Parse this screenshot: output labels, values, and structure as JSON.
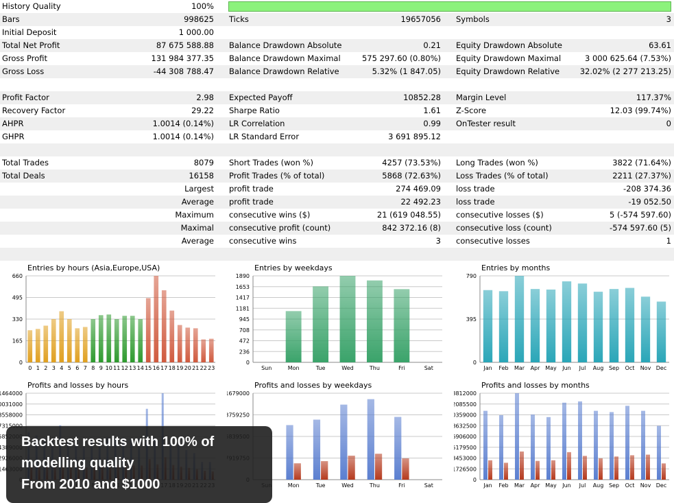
{
  "report": {
    "rows": [
      {
        "c": [
          "History Quality",
          "100%",
          "",
          "",
          "",
          ""
        ],
        "bar": true
      },
      {
        "c": [
          "Bars",
          "998625",
          "Ticks",
          "19657056",
          "Symbols",
          "3"
        ]
      },
      {
        "c": [
          "Initial Deposit",
          "1 000.00",
          "",
          "",
          "",
          ""
        ]
      },
      {
        "c": [
          "Total Net Profit",
          "87 675 588.88",
          "Balance Drawdown Absolute",
          "0.21",
          "Equity Drawdown Absolute",
          "63.61"
        ]
      },
      {
        "c": [
          "Gross Profit",
          "131 984 377.35",
          "Balance Drawdown Maximal",
          "575 297.60 (0.80%)",
          "Equity Drawdown Maximal",
          "3 000 625.64 (7.53%)"
        ]
      },
      {
        "c": [
          "Gross Loss",
          "-44 308 788.47",
          "Balance Drawdown Relative",
          "5.32% (1 847.05)",
          "Equity Drawdown Relative",
          "32.02% (2 277 213.25)"
        ]
      },
      {
        "c": [
          "",
          "",
          "",
          "",
          "",
          ""
        ]
      },
      {
        "c": [
          "Profit Factor",
          "2.98",
          "Expected Payoff",
          "10852.28",
          "Margin Level",
          "117.37%"
        ]
      },
      {
        "c": [
          "Recovery Factor",
          "29.22",
          "Sharpe Ratio",
          "1.61",
          "Z-Score",
          "12.03 (99.74%)"
        ]
      },
      {
        "c": [
          "AHPR",
          "1.0014 (0.14%)",
          "LR Correlation",
          "0.99",
          "OnTester result",
          "0"
        ]
      },
      {
        "c": [
          "GHPR",
          "1.0014 (0.14%)",
          "LR Standard Error",
          "3 691 895.12",
          "",
          ""
        ]
      },
      {
        "c": [
          "",
          "",
          "",
          "",
          "",
          ""
        ]
      },
      {
        "c": [
          "Total Trades",
          "8079",
          "Short Trades (won %)",
          "4257 (73.53%)",
          "Long Trades (won %)",
          "3822 (71.64%)"
        ]
      },
      {
        "c": [
          "Total Deals",
          "16158",
          "Profit Trades (% of total)",
          "5868 (72.63%)",
          "Loss Trades (% of total)",
          "2211 (27.37%)"
        ]
      },
      {
        "c": [
          "",
          "Largest",
          "profit trade",
          "274 469.09",
          "loss trade",
          "-208 374.36"
        ]
      },
      {
        "c": [
          "",
          "Average",
          "profit trade",
          "22 492.23",
          "loss trade",
          "-19 052.50"
        ]
      },
      {
        "c": [
          "",
          "Maximum",
          "consecutive wins ($)",
          "21 (619 048.55)",
          "consecutive losses ($)",
          "5 (-574 597.60)"
        ]
      },
      {
        "c": [
          "",
          "Maximal",
          "consecutive profit (count)",
          "842 372.16 (8)",
          "consecutive loss (count)",
          "-574 597.60 (5)"
        ]
      },
      {
        "c": [
          "",
          "Average",
          "consecutive wins",
          "3",
          "consecutive losses",
          "1"
        ]
      },
      {
        "c": [
          "",
          "",
          "",
          "",
          "",
          ""
        ]
      }
    ]
  },
  "chart_data": [
    {
      "type": "bar",
      "title": "Entries by hours (Asia,Europe,USA)",
      "categories": [
        "0",
        "1",
        "2",
        "3",
        "4",
        "5",
        "6",
        "7",
        "8",
        "9",
        "10",
        "11",
        "12",
        "13",
        "14",
        "15",
        "16",
        "17",
        "18",
        "19",
        "20",
        "21",
        "22",
        "23"
      ],
      "values": [
        245,
        255,
        280,
        330,
        390,
        330,
        260,
        270,
        330,
        360,
        365,
        330,
        355,
        355,
        330,
        490,
        660,
        550,
        395,
        285,
        265,
        260,
        175,
        180
      ],
      "colors": [
        "#e0a020",
        "#e0a020",
        "#e0a020",
        "#e0a020",
        "#e0a020",
        "#e0a020",
        "#e0a020",
        "#e0a020",
        "#2e9a2e",
        "#2e9a2e",
        "#2e9a2e",
        "#2e9a2e",
        "#2e9a2e",
        "#2e9a2e",
        "#2e9a2e",
        "#d05a3e",
        "#d05a3e",
        "#d05a3e",
        "#d05a3e",
        "#d05a3e",
        "#d05a3e",
        "#d05a3e",
        "#d05a3e",
        "#d05a3e"
      ],
      "yticks": [
        "0",
        "165",
        "330",
        "495",
        "660"
      ],
      "ylim": [
        0,
        660
      ]
    },
    {
      "type": "bar",
      "title": "Entries by weekdays",
      "categories": [
        "Sun",
        "Mon",
        "Tue",
        "Wed",
        "Thu",
        "Fri",
        "Sat"
      ],
      "values": [
        0,
        1120,
        1660,
        1890,
        1790,
        1600,
        0
      ],
      "color": "#3aa36a",
      "yticks": [
        "0",
        "236",
        "472",
        "708",
        "945",
        "1181",
        "1417",
        "1653",
        "1890"
      ],
      "ylim": [
        0,
        1890
      ]
    },
    {
      "type": "bar",
      "title": "Entries by months",
      "categories": [
        "Jan",
        "Feb",
        "Mar",
        "Apr",
        "May",
        "Jun",
        "Jul",
        "Aug",
        "Sep",
        "Oct",
        "Nov",
        "Dec"
      ],
      "values": [
        660,
        650,
        790,
        670,
        665,
        740,
        720,
        645,
        670,
        680,
        600,
        555
      ],
      "color": "#2aa6b8",
      "yticks": [
        "0",
        "395",
        "790"
      ],
      "ylim": [
        0,
        790
      ]
    },
    {
      "type": "bar",
      "title": "Profits and losses by hours",
      "categories": [
        "0",
        "1",
        "2",
        "3",
        "4",
        "5",
        "6",
        "7",
        "8",
        "9",
        "10",
        "11",
        "12",
        "13",
        "14",
        "15",
        "16",
        "17",
        "18",
        "19",
        "20",
        "21",
        "22",
        "23"
      ],
      "series": [
        {
          "values": [
            8000000,
            7500000,
            7000000,
            6500000,
            9200000,
            6500000,
            6000000,
            5500000,
            7000000,
            7000000,
            7200000,
            7000000,
            7100000,
            7000000,
            7000000,
            12000000,
            7000000,
            14640000,
            7000000,
            6000000,
            5000000,
            4500000,
            3000000,
            3000000
          ]
        },
        {
          "values": [
            2500000,
            2400000,
            2300000,
            2200000,
            2600000,
            2300000,
            2200000,
            2100000,
            2400000,
            2400000,
            2500000,
            2400000,
            2500000,
            2400000,
            2400000,
            3500000,
            2600000,
            3800000,
            2500000,
            2200000,
            2000000,
            1800000,
            1500000,
            1400000
          ]
        }
      ],
      "yticks": [
        "0",
        "1463000",
        "2926000",
        "4389000",
        "5852000",
        "7315000",
        "8558000",
        "10031000",
        "11464000"
      ],
      "ylim": [
        0,
        14640000
      ]
    },
    {
      "type": "bar",
      "title": "Profits and losses by weekdays",
      "categories": [
        "Sun",
        "Mon",
        "Tue",
        "Wed",
        "Thu",
        "Fri",
        "Sat"
      ],
      "series": [
        {
          "values": [
            0,
            20000000,
            22000000,
            27500000,
            29500000,
            23000000,
            0
          ]
        },
        {
          "values": [
            0,
            6000000,
            6800000,
            8800000,
            9500000,
            7800000,
            0
          ]
        }
      ],
      "yticks": [
        "0",
        "7919750",
        "15839500",
        "23759250",
        "31679000"
      ],
      "ylim": [
        0,
        31679000
      ]
    },
    {
      "type": "bar",
      "title": "Profits and losses by months",
      "categories": [
        "Jan",
        "Feb",
        "Mar",
        "Apr",
        "May",
        "Jun",
        "Jul",
        "Aug",
        "Sep",
        "Oct",
        "Nov",
        "Dec"
      ],
      "series": [
        {
          "values": [
            11000000,
            10300000,
            13812000,
            10400000,
            10000000,
            12300000,
            12500000,
            11000000,
            10800000,
            11800000,
            11000000,
            8600000
          ]
        },
        {
          "values": [
            3100000,
            2700000,
            4500000,
            3000000,
            3100000,
            4400000,
            3800000,
            3400000,
            3700000,
            3900000,
            4000000,
            2600000
          ]
        }
      ],
      "yticks": [
        "0",
        "1726500",
        "3453000",
        "5179500",
        "6906000",
        "8632500",
        "10359000",
        "12085500",
        "13812000"
      ],
      "ylim": [
        0,
        13812000
      ]
    }
  ],
  "overlay": {
    "line1": "Backtest results with 100% of",
    "line2": "modelling quality",
    "line3": "From 2010 and $1000"
  },
  "colors": {
    "profit": "#5b7fd0",
    "loss": "#b53a1e",
    "bar_fill": "#8cf27c"
  }
}
